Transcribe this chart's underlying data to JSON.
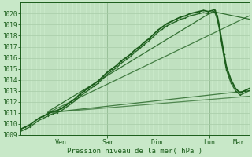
{
  "bg_color": "#c8e8c8",
  "grid_color": "#a8cca8",
  "line_color": "#1a5c1a",
  "text_color": "#1a5c1a",
  "xlabel_text": "Pression niveau de la mer( hPa )",
  "ylim": [
    1009,
    1021
  ],
  "yticks": [
    1009,
    1010,
    1011,
    1012,
    1013,
    1014,
    1015,
    1016,
    1017,
    1018,
    1019,
    1020
  ],
  "xtick_labels": [
    "Ven",
    "Sam",
    "Dim",
    "Lun",
    "Mar"
  ],
  "xtick_positions": [
    0.175,
    0.38,
    0.595,
    0.825,
    0.955
  ],
  "lines": [
    {
      "comment": "main observed wiggly line with markers - rises to 1020 then drops",
      "x": [
        0.0,
        0.02,
        0.04,
        0.06,
        0.08,
        0.1,
        0.12,
        0.14,
        0.16,
        0.18,
        0.2,
        0.22,
        0.24,
        0.26,
        0.28,
        0.3,
        0.32,
        0.34,
        0.36,
        0.38,
        0.4,
        0.42,
        0.44,
        0.46,
        0.48,
        0.5,
        0.52,
        0.54,
        0.56,
        0.58,
        0.6,
        0.62,
        0.64,
        0.66,
        0.68,
        0.7,
        0.72,
        0.74,
        0.76,
        0.78,
        0.8,
        0.82,
        0.84,
        0.845,
        0.85,
        0.86,
        0.87,
        0.88,
        0.89,
        0.9,
        0.92,
        0.94,
        0.96,
        0.98,
        1.0
      ],
      "y": [
        1009.5,
        1009.7,
        1009.9,
        1010.2,
        1010.5,
        1010.7,
        1010.9,
        1011.1,
        1011.2,
        1011.4,
        1011.7,
        1012.0,
        1012.3,
        1012.7,
        1013.0,
        1013.3,
        1013.6,
        1013.9,
        1014.3,
        1014.7,
        1015.0,
        1015.3,
        1015.7,
        1016.0,
        1016.3,
        1016.7,
        1017.0,
        1017.4,
        1017.7,
        1018.1,
        1018.5,
        1018.8,
        1019.1,
        1019.3,
        1019.5,
        1019.7,
        1019.8,
        1020.0,
        1020.1,
        1020.2,
        1020.3,
        1020.2,
        1020.3,
        1020.4,
        1020.3,
        1019.8,
        1018.8,
        1017.5,
        1016.3,
        1015.2,
        1014.0,
        1013.2,
        1012.8,
        1013.0,
        1013.2
      ],
      "lw": 1.3,
      "marker": ".",
      "ms": 2.5,
      "alpha": 1.0
    },
    {
      "comment": "second wiggly line - slightly below main, same shape",
      "x": [
        0.0,
        0.02,
        0.04,
        0.06,
        0.08,
        0.1,
        0.12,
        0.14,
        0.16,
        0.18,
        0.2,
        0.22,
        0.24,
        0.26,
        0.28,
        0.3,
        0.32,
        0.34,
        0.36,
        0.38,
        0.4,
        0.42,
        0.44,
        0.46,
        0.48,
        0.5,
        0.52,
        0.54,
        0.56,
        0.58,
        0.6,
        0.62,
        0.64,
        0.66,
        0.68,
        0.7,
        0.72,
        0.74,
        0.76,
        0.78,
        0.8,
        0.82,
        0.84,
        0.845,
        0.85,
        0.86,
        0.87,
        0.88,
        0.89,
        0.9,
        0.92,
        0.94,
        0.96,
        0.98,
        1.0
      ],
      "y": [
        1009.3,
        1009.5,
        1009.7,
        1010.0,
        1010.3,
        1010.5,
        1010.7,
        1010.9,
        1011.0,
        1011.2,
        1011.5,
        1011.8,
        1012.1,
        1012.5,
        1012.8,
        1013.1,
        1013.4,
        1013.7,
        1014.1,
        1014.5,
        1014.8,
        1015.1,
        1015.5,
        1015.8,
        1016.1,
        1016.5,
        1016.8,
        1017.2,
        1017.5,
        1017.9,
        1018.3,
        1018.6,
        1018.9,
        1019.1,
        1019.3,
        1019.5,
        1019.6,
        1019.8,
        1019.9,
        1020.0,
        1020.1,
        1020.0,
        1020.1,
        1020.2,
        1020.1,
        1019.5,
        1018.5,
        1017.2,
        1016.0,
        1014.9,
        1013.7,
        1013.0,
        1012.6,
        1012.8,
        1013.0
      ],
      "lw": 1.0,
      "marker": ".",
      "ms": 2.0,
      "alpha": 0.9
    },
    {
      "comment": "straight forecast line - rises to 1020 at Lun",
      "x": [
        0.12,
        0.84,
        1.0
      ],
      "y": [
        1011.1,
        1020.2,
        1019.5
      ],
      "lw": 0.9,
      "marker": null,
      "ms": 0,
      "alpha": 0.85
    },
    {
      "comment": "straight forecast line - rises to 1019.8 at end",
      "x": [
        0.12,
        1.0
      ],
      "y": [
        1011.0,
        1019.8
      ],
      "lw": 0.9,
      "marker": null,
      "ms": 0,
      "alpha": 0.75
    },
    {
      "comment": "flat forecast line ending ~1013",
      "x": [
        0.12,
        1.0
      ],
      "y": [
        1011.0,
        1013.0
      ],
      "lw": 0.9,
      "marker": null,
      "ms": 0,
      "alpha": 0.75
    },
    {
      "comment": "flat forecast line ending ~1012.5",
      "x": [
        0.12,
        1.0
      ],
      "y": [
        1011.0,
        1012.5
      ],
      "lw": 0.9,
      "marker": null,
      "ms": 0,
      "alpha": 0.65
    }
  ]
}
